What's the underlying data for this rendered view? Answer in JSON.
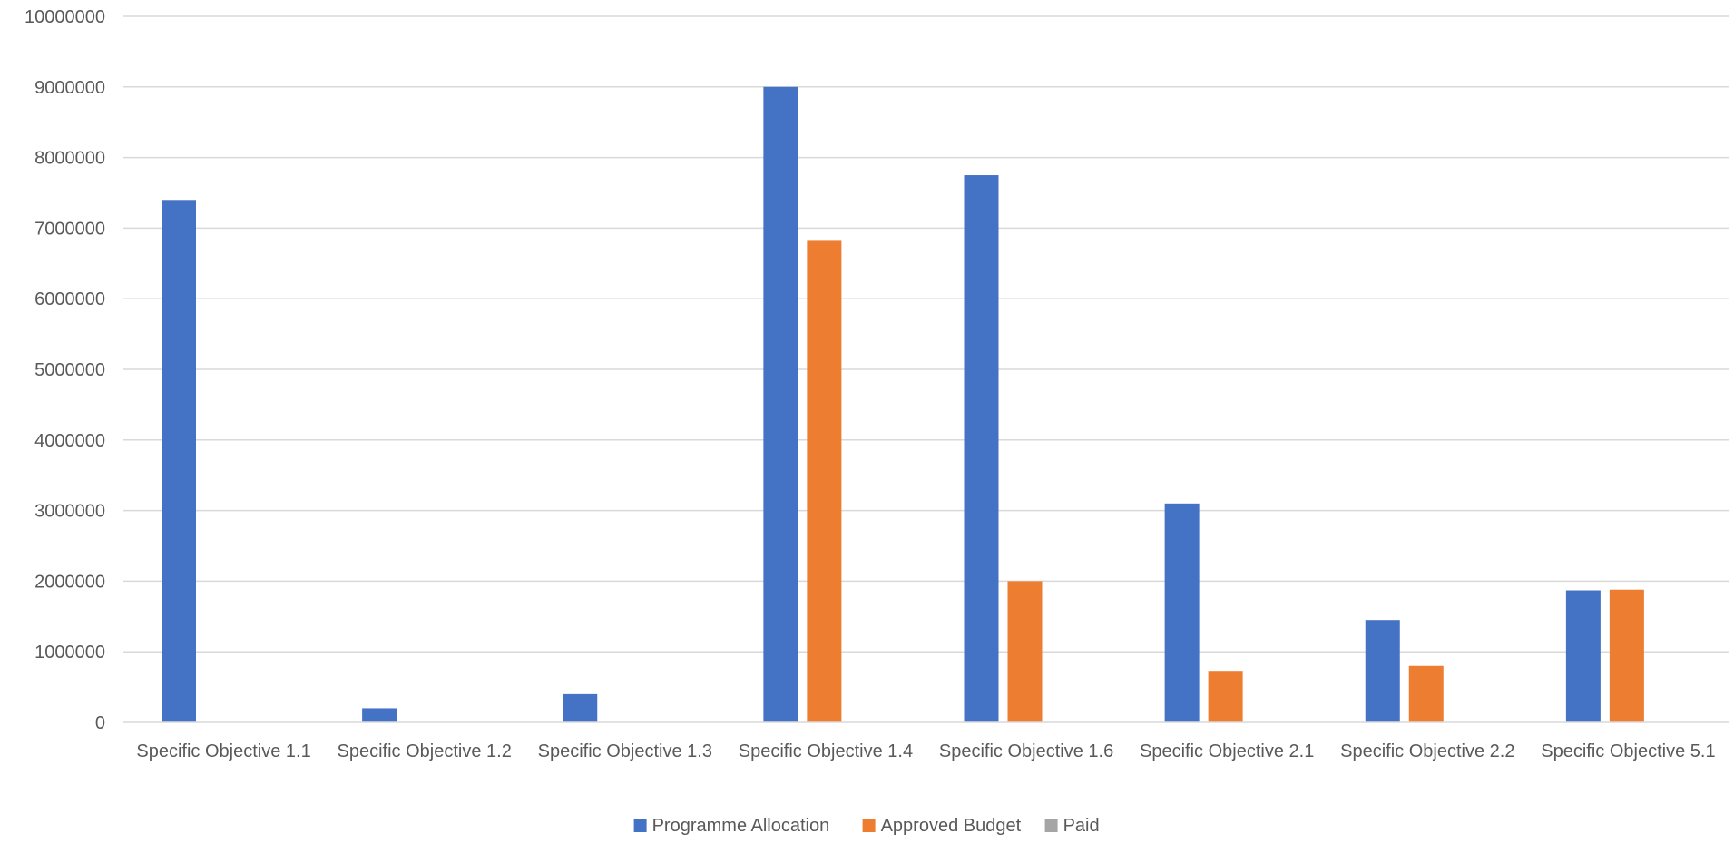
{
  "chart_data": {
    "type": "bar",
    "categories": [
      "Specific Objective 1.1",
      "Specific Objective 1.2",
      "Specific Objective 1.3",
      "Specific Objective 1.4",
      "Specific Objective 1.6",
      "Specific Objective 2.1",
      "Specific Objective 2.2",
      "Specific Objective 5.1"
    ],
    "series": [
      {
        "name": "Programme Allocation",
        "color": "#4472C4",
        "values": [
          7400000,
          200000,
          400000,
          9000000,
          7750000,
          3100000,
          1450000,
          1870000
        ]
      },
      {
        "name": "Approved Budget",
        "color": "#ED7D31",
        "values": [
          0,
          0,
          0,
          6820000,
          2000000,
          730000,
          800000,
          1880000
        ]
      },
      {
        "name": "Paid",
        "color": "#A5A5A5",
        "values": [
          0,
          0,
          0,
          0,
          0,
          0,
          0,
          0
        ]
      }
    ],
    "yticks": [
      "0",
      "1000000",
      "2000000",
      "3000000",
      "4000000",
      "5000000",
      "6000000",
      "7000000",
      "8000000",
      "9000000",
      "10000000"
    ],
    "ylim": [
      0,
      10000000
    ],
    "grid": true,
    "legend_position": "bottom"
  }
}
